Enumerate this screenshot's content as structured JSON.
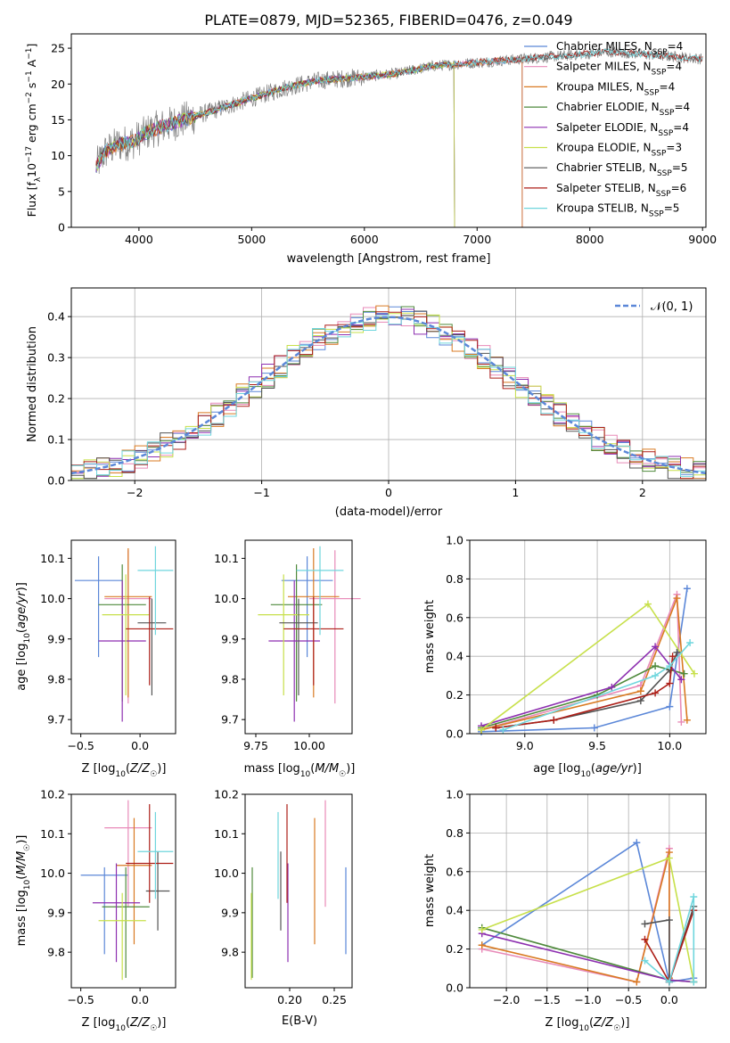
{
  "figure_title": "PLATE=0879, MJD=52365, FIBERID=0476, z=0.049",
  "colors": {
    "Chabrier MILES": "#5b87d8",
    "Salpeter MILES": "#e88ab8",
    "Kroupa MILES": "#d97a22",
    "Chabrier ELODIE": "#4f8a3c",
    "Salpeter ELODIE": "#8d2fb0",
    "Kroupa ELODIE": "#c7e04a",
    "Chabrier STELIB": "#545454",
    "Salpeter STELIB": "#ad1f18",
    "Kroupa STELIB": "#6fd6dd"
  },
  "chart_data": [
    {
      "id": "spectrum",
      "type": "line",
      "xlabel": "wavelength [Angstrom, rest frame]",
      "ylabel": "Flux [f_λ10^-17 erg cm^-2 s^-1 A^-1]",
      "xlim": [
        3400,
        9030
      ],
      "ylim": [
        0,
        27
      ],
      "xticks": [
        4000,
        5000,
        6000,
        7000,
        8000,
        9000
      ],
      "yticks": [
        0,
        5,
        10,
        15,
        20,
        25
      ],
      "legend_position": "right",
      "data_range": [
        3620,
        9000
      ],
      "continuum": {
        "x": [
          3620,
          3700,
          3800,
          3950,
          4100,
          4300,
          4500,
          4800,
          5000,
          5300,
          5600,
          6000,
          6300,
          6600,
          7000,
          7400,
          7800,
          8200,
          8600,
          9000
        ],
        "y": [
          8.5,
          10.5,
          11.5,
          12.0,
          13.5,
          14.5,
          15.5,
          17.0,
          18.0,
          19.5,
          20.5,
          21.0,
          21.5,
          22.5,
          23.0,
          23.5,
          24.0,
          24.5,
          24.0,
          23.5
        ]
      },
      "model_ends": [
        {
          "model": "Chabrier MILES",
          "end": 7400
        },
        {
          "model": "Salpeter MILES",
          "end": 7400
        },
        {
          "model": "Kroupa MILES",
          "end": 7400
        },
        {
          "model": "Chabrier ELODIE",
          "end": 6800
        },
        {
          "model": "Salpeter ELODIE",
          "end": 6800
        },
        {
          "model": "Kroupa ELODIE",
          "end": 6800
        },
        {
          "model": "Chabrier STELIB",
          "end": 9000
        },
        {
          "model": "Salpeter STELIB",
          "end": 9000
        },
        {
          "model": "Kroupa STELIB",
          "end": 9000
        }
      ],
      "legend": [
        {
          "model": "Chabrier MILES",
          "label": "Chabrier MILES, N",
          "sub": "SSP",
          "tail": "=4"
        },
        {
          "model": "Salpeter MILES",
          "label": "Salpeter MILES, N",
          "sub": "SSP",
          "tail": "=4"
        },
        {
          "model": "Kroupa MILES",
          "label": "Kroupa MILES, N",
          "sub": "SSP",
          "tail": "=4"
        },
        {
          "model": "Chabrier ELODIE",
          "label": "Chabrier ELODIE, N",
          "sub": "SSP",
          "tail": "=4"
        },
        {
          "model": "Salpeter ELODIE",
          "label": "Salpeter ELODIE, N",
          "sub": "SSP",
          "tail": "=4"
        },
        {
          "model": "Kroupa ELODIE",
          "label": "Kroupa ELODIE, N",
          "sub": "SSP",
          "tail": "=3"
        },
        {
          "model": "Chabrier STELIB",
          "label": "Chabrier STELIB, N",
          "sub": "SSP",
          "tail": "=5"
        },
        {
          "model": "Salpeter STELIB",
          "label": "Salpeter STELIB, N",
          "sub": "SSP",
          "tail": "=6"
        },
        {
          "model": "Kroupa STELIB",
          "label": "Kroupa STELIB, N",
          "sub": "SSP",
          "tail": "=5"
        }
      ]
    },
    {
      "id": "residuals",
      "type": "line",
      "xlabel": "(data-model)/error",
      "ylabel": "Normed distribution",
      "xlim": [
        -2.5,
        2.5
      ],
      "ylim": [
        0,
        0.47
      ],
      "xticks": [
        -2,
        -1,
        0,
        1,
        2
      ],
      "yticks": [
        0.0,
        0.1,
        0.2,
        0.3,
        0.4
      ],
      "grid": true,
      "bin_width": 0.1,
      "legend": [
        {
          "label": "𝒩(0, 1)",
          "style": "dashed",
          "color": "#5b87d8"
        }
      ]
    },
    {
      "id": "age_vs_Z",
      "type": "scatter",
      "xlabel": "Z [log₁₀(Z/Z☉)]",
      "ylabel": "age  [log₁₀(age/yr)]",
      "xlim": [
        -0.58,
        0.3
      ],
      "ylim": [
        9.665,
        10.145
      ],
      "xticks": [
        -0.5,
        0.0
      ],
      "yticks": [
        9.7,
        9.8,
        9.9,
        10.0,
        10.1
      ],
      "points": [
        {
          "model": "Chabrier MILES",
          "x": -0.35,
          "xerr": 0.2,
          "y": 10.045,
          "yerr": [
            0.19,
            0.06
          ]
        },
        {
          "model": "Salpeter MILES",
          "x": -0.1,
          "xerr": 0.2,
          "y": 10.0,
          "yerr": [
            0.26,
            0.12
          ]
        },
        {
          "model": "Kroupa MILES",
          "x": -0.1,
          "xerr": 0.2,
          "y": 10.005,
          "yerr": [
            0.25,
            0.12
          ]
        },
        {
          "model": "Chabrier ELODIE",
          "x": -0.15,
          "xerr": 0.2,
          "y": 9.985,
          "yerr": [
            0.24,
            0.1
          ]
        },
        {
          "model": "Salpeter ELODIE",
          "x": -0.15,
          "xerr": 0.2,
          "y": 9.895,
          "yerr": [
            0.2,
            0.15
          ]
        },
        {
          "model": "Kroupa ELODIE",
          "x": -0.12,
          "xerr": 0.2,
          "y": 9.96,
          "yerr": [
            0.2,
            0.1
          ]
        },
        {
          "model": "Chabrier STELIB",
          "x": 0.1,
          "xerr": 0.12,
          "y": 9.94,
          "yerr": [
            0.18,
            0.06
          ]
        },
        {
          "model": "Salpeter STELIB",
          "x": 0.08,
          "xerr": 0.2,
          "y": 9.925,
          "yerr": [
            0.14,
            0.08
          ]
        },
        {
          "model": "Kroupa STELIB",
          "x": 0.13,
          "xerr": 0.15,
          "y": 10.07,
          "yerr": [
            0.16,
            0.06
          ]
        }
      ]
    },
    {
      "id": "age_vs_mass",
      "type": "scatter",
      "xlabel": "mass [log₁₀(M/M☉)]",
      "ylabel": "",
      "xlim": [
        9.7,
        10.2
      ],
      "ylim": [
        9.665,
        10.145
      ],
      "xticks": [
        9.75,
        10.0
      ],
      "yticks": [
        9.7,
        9.8,
        9.9,
        10.0,
        10.1
      ],
      "points": [
        {
          "model": "Chabrier MILES",
          "x": 9.99,
          "xerr": 0.12,
          "y": 10.045,
          "yerr": [
            0.19,
            0.06
          ]
        },
        {
          "model": "Salpeter MILES",
          "x": 10.12,
          "xerr": 0.12,
          "y": 10.0,
          "yerr": [
            0.26,
            0.12
          ]
        },
        {
          "model": "Kroupa MILES",
          "x": 10.02,
          "xerr": 0.12,
          "y": 10.005,
          "yerr": [
            0.25,
            0.12
          ]
        },
        {
          "model": "Chabrier ELODIE",
          "x": 9.94,
          "xerr": 0.12,
          "y": 9.985,
          "yerr": [
            0.24,
            0.1
          ]
        },
        {
          "model": "Salpeter ELODIE",
          "x": 9.93,
          "xerr": 0.12,
          "y": 9.895,
          "yerr": [
            0.2,
            0.15
          ]
        },
        {
          "model": "Kroupa ELODIE",
          "x": 9.88,
          "xerr": 0.12,
          "y": 9.96,
          "yerr": [
            0.2,
            0.1
          ]
        },
        {
          "model": "Chabrier STELIB",
          "x": 9.95,
          "xerr": 0.09,
          "y": 9.94,
          "yerr": [
            0.18,
            0.06
          ]
        },
        {
          "model": "Salpeter STELIB",
          "x": 10.02,
          "xerr": 0.14,
          "y": 9.925,
          "yerr": [
            0.14,
            0.08
          ]
        },
        {
          "model": "Kroupa STELIB",
          "x": 10.05,
          "xerr": 0.11,
          "y": 10.07,
          "yerr": [
            0.16,
            0.06
          ]
        }
      ]
    },
    {
      "id": "weight_vs_age",
      "type": "line",
      "xlabel": "age  [log₁₀(age/yr)]",
      "ylabel": "mass weight",
      "xlim": [
        8.62,
        10.25
      ],
      "ylim": [
        0,
        1.0
      ],
      "xticks": [
        9.0,
        9.5,
        10.0
      ],
      "yticks": [
        0.0,
        0.2,
        0.4,
        0.6,
        0.8,
        1.0
      ],
      "grid": true,
      "series": [
        {
          "model": "Chabrier MILES",
          "x": [
            8.7,
            9.48,
            10.0,
            10.12
          ],
          "y": [
            0.01,
            0.03,
            0.14,
            0.75
          ]
        },
        {
          "model": "Salpeter MILES",
          "x": [
            8.7,
            9.8,
            10.05,
            10.08
          ],
          "y": [
            0.02,
            0.25,
            0.72,
            0.06
          ]
        },
        {
          "model": "Kroupa MILES",
          "x": [
            8.7,
            9.8,
            10.05,
            10.12
          ],
          "y": [
            0.02,
            0.22,
            0.7,
            0.07
          ]
        },
        {
          "model": "Chabrier ELODIE",
          "x": [
            8.7,
            9.5,
            9.9,
            10.1
          ],
          "y": [
            0.03,
            0.2,
            0.35,
            0.31
          ]
        },
        {
          "model": "Salpeter ELODIE",
          "x": [
            8.7,
            9.6,
            9.9,
            10.08
          ],
          "y": [
            0.04,
            0.24,
            0.45,
            0.28
          ]
        },
        {
          "model": "Kroupa ELODIE",
          "x": [
            8.7,
            9.85,
            10.17
          ],
          "y": [
            0.02,
            0.67,
            0.31
          ]
        },
        {
          "model": "Chabrier STELIB",
          "x": [
            8.8,
            9.2,
            9.8,
            10.0,
            10.05
          ],
          "y": [
            0.03,
            0.07,
            0.17,
            0.33,
            0.42
          ]
        },
        {
          "model": "Salpeter STELIB",
          "x": [
            8.8,
            9.2,
            9.9,
            10.0,
            10.02
          ],
          "y": [
            0.03,
            0.07,
            0.21,
            0.26,
            0.4
          ]
        },
        {
          "model": "Kroupa STELIB",
          "x": [
            8.85,
            9.9,
            10.0,
            10.14
          ],
          "y": [
            0.02,
            0.3,
            0.35,
            0.47
          ]
        }
      ]
    },
    {
      "id": "mass_vs_Z",
      "type": "scatter",
      "xlabel": "Z [log₁₀(Z/Z☉)]",
      "ylabel": "mass [log₁₀(M/M☉)]",
      "xlim": [
        -0.58,
        0.3
      ],
      "ylim": [
        9.71,
        10.2
      ],
      "xticks": [
        -0.5,
        0.0
      ],
      "yticks": [
        9.8,
        9.9,
        10.0,
        10.1,
        10.2
      ],
      "points": [
        {
          "model": "Chabrier MILES",
          "x": -0.3,
          "xerr": 0.2,
          "y": 9.995,
          "yerr": [
            0.2,
            0.02
          ]
        },
        {
          "model": "Salpeter MILES",
          "x": -0.1,
          "xerr": 0.2,
          "y": 10.115,
          "yerr": [
            0.2,
            0.07
          ]
        },
        {
          "model": "Kroupa MILES",
          "x": -0.05,
          "xerr": 0.15,
          "y": 10.02,
          "yerr": [
            0.2,
            0.12
          ]
        },
        {
          "model": "Chabrier ELODIE",
          "x": -0.12,
          "xerr": 0.2,
          "y": 9.915,
          "yerr": [
            0.18,
            0.1
          ]
        },
        {
          "model": "Salpeter ELODIE",
          "x": -0.2,
          "xerr": 0.2,
          "y": 9.925,
          "yerr": [
            0.15,
            0.1
          ]
        },
        {
          "model": "Kroupa ELODIE",
          "x": -0.15,
          "xerr": 0.2,
          "y": 9.88,
          "yerr": [
            0.15,
            0.07
          ]
        },
        {
          "model": "Chabrier STELIB",
          "x": 0.15,
          "xerr": 0.1,
          "y": 9.955,
          "yerr": [
            0.1,
            0.1
          ]
        },
        {
          "model": "Salpeter STELIB",
          "x": 0.08,
          "xerr": 0.2,
          "y": 10.025,
          "yerr": [
            0.1,
            0.15
          ]
        },
        {
          "model": "Kroupa STELIB",
          "x": 0.13,
          "xerr": 0.15,
          "y": 10.055,
          "yerr": [
            0.12,
            0.1
          ]
        }
      ]
    },
    {
      "id": "mass_vs_ebv",
      "type": "scatter",
      "xlabel": "E(B-V)",
      "ylabel": "",
      "xlim": [
        0.15,
        0.27
      ],
      "ylim": [
        9.71,
        10.2
      ],
      "xticks": [
        0.2,
        0.25
      ],
      "yticks": [
        9.8,
        9.9,
        10.0,
        10.1,
        10.2
      ],
      "points": [
        {
          "model": "Chabrier MILES",
          "x": 0.263,
          "xerr": 0,
          "y": 9.995,
          "yerr": [
            0.2,
            0.02
          ]
        },
        {
          "model": "Salpeter MILES",
          "x": 0.24,
          "xerr": 0,
          "y": 10.115,
          "yerr": [
            0.2,
            0.07
          ]
        },
        {
          "model": "Kroupa MILES",
          "x": 0.228,
          "xerr": 0,
          "y": 10.02,
          "yerr": [
            0.2,
            0.12
          ]
        },
        {
          "model": "Chabrier ELODIE",
          "x": 0.158,
          "xerr": 0,
          "y": 9.915,
          "yerr": [
            0.18,
            0.1
          ]
        },
        {
          "model": "Salpeter ELODIE",
          "x": 0.198,
          "xerr": 0,
          "y": 9.925,
          "yerr": [
            0.15,
            0.1
          ]
        },
        {
          "model": "Kroupa ELODIE",
          "x": 0.157,
          "xerr": 0,
          "y": 9.88,
          "yerr": [
            0.15,
            0.07
          ]
        },
        {
          "model": "Chabrier STELIB",
          "x": 0.19,
          "xerr": 0,
          "y": 9.955,
          "yerr": [
            0.1,
            0.1
          ]
        },
        {
          "model": "Salpeter STELIB",
          "x": 0.197,
          "xerr": 0,
          "y": 10.025,
          "yerr": [
            0.1,
            0.15
          ]
        },
        {
          "model": "Kroupa STELIB",
          "x": 0.187,
          "xerr": 0,
          "y": 10.055,
          "yerr": [
            0.12,
            0.1
          ]
        }
      ]
    },
    {
      "id": "weight_vs_Z",
      "type": "line",
      "xlabel": "Z [log₁₀(Z/Z☉)]",
      "ylabel": "mass weight",
      "xlim": [
        -2.45,
        0.45
      ],
      "ylim": [
        0,
        1.0
      ],
      "xticks": [
        -2.0,
        -1.5,
        -1.0,
        -0.5,
        0.0
      ],
      "yticks": [
        0.0,
        0.2,
        0.4,
        0.6,
        0.8,
        1.0
      ],
      "grid": true,
      "series": [
        {
          "model": "Chabrier MILES",
          "x": [
            -2.3,
            -0.4,
            0.0,
            0.3
          ],
          "y": [
            0.22,
            0.75,
            0.03,
            0.05
          ]
        },
        {
          "model": "Salpeter MILES",
          "x": [
            -2.3,
            -0.4,
            0.0,
            0.0
          ],
          "y": [
            0.2,
            0.03,
            0.72,
            0.05
          ]
        },
        {
          "model": "Kroupa MILES",
          "x": [
            -2.3,
            -0.4,
            0.0,
            0.0
          ],
          "y": [
            0.22,
            0.03,
            0.7,
            0.05
          ]
        },
        {
          "model": "Chabrier ELODIE",
          "x": [
            -2.3,
            0.0,
            0.3
          ],
          "y": [
            0.31,
            0.04,
            0.03
          ]
        },
        {
          "model": "Salpeter ELODIE",
          "x": [
            -2.3,
            0.0,
            0.3
          ],
          "y": [
            0.28,
            0.04,
            0.03
          ]
        },
        {
          "model": "Kroupa ELODIE",
          "x": [
            -2.3,
            0.0,
            0.3
          ],
          "y": [
            0.3,
            0.67,
            0.03
          ]
        },
        {
          "model": "Chabrier STELIB",
          "x": [
            -0.3,
            0.0,
            0.0,
            0.3
          ],
          "y": [
            0.33,
            0.35,
            0.03,
            0.42
          ]
        },
        {
          "model": "Salpeter STELIB",
          "x": [
            -0.3,
            0.0,
            0.3
          ],
          "y": [
            0.25,
            0.03,
            0.4
          ]
        },
        {
          "model": "Kroupa STELIB",
          "x": [
            -0.3,
            0.0,
            0.3,
            0.3
          ],
          "y": [
            0.14,
            0.03,
            0.47,
            0.03
          ]
        }
      ]
    }
  ]
}
